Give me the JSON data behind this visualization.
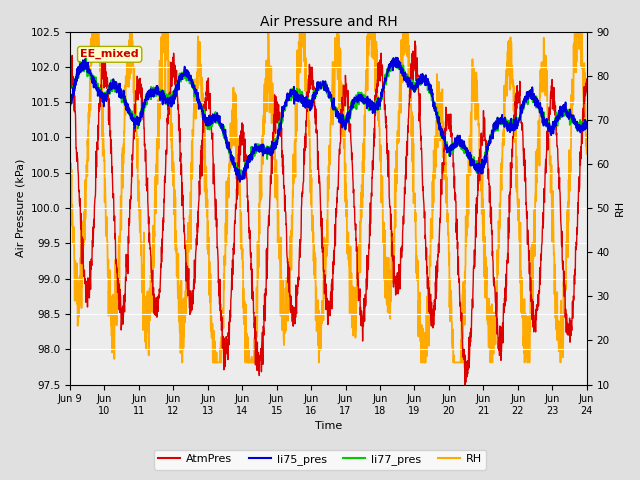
{
  "title": "Air Pressure and RH",
  "xlabel": "Time",
  "ylabel_left": "Air Pressure (kPa)",
  "ylabel_right": "RH",
  "ylim_left": [
    97.5,
    102.5
  ],
  "ylim_right": [
    10,
    90
  ],
  "yticks_left": [
    97.5,
    98.0,
    98.5,
    99.0,
    99.5,
    100.0,
    100.5,
    101.0,
    101.5,
    102.0,
    102.5
  ],
  "yticks_right": [
    10,
    20,
    30,
    40,
    50,
    60,
    70,
    80,
    90
  ],
  "bg_color": "#e0e0e0",
  "plot_bg_color": "#ececec",
  "annotation_text": "EE_mixed",
  "annotation_color": "#cc0000",
  "annotation_bg": "#ffffcc",
  "annotation_edge": "#aaaa00",
  "colors": {
    "AtmPres": "#dd0000",
    "li75_pres": "#0000dd",
    "li77_pres": "#00cc00",
    "RH": "#ffaa00"
  },
  "line_widths": {
    "AtmPres": 1.0,
    "li75_pres": 1.3,
    "li77_pres": 1.3,
    "RH": 1.3
  },
  "figsize": [
    6.4,
    4.8
  ],
  "dpi": 100
}
